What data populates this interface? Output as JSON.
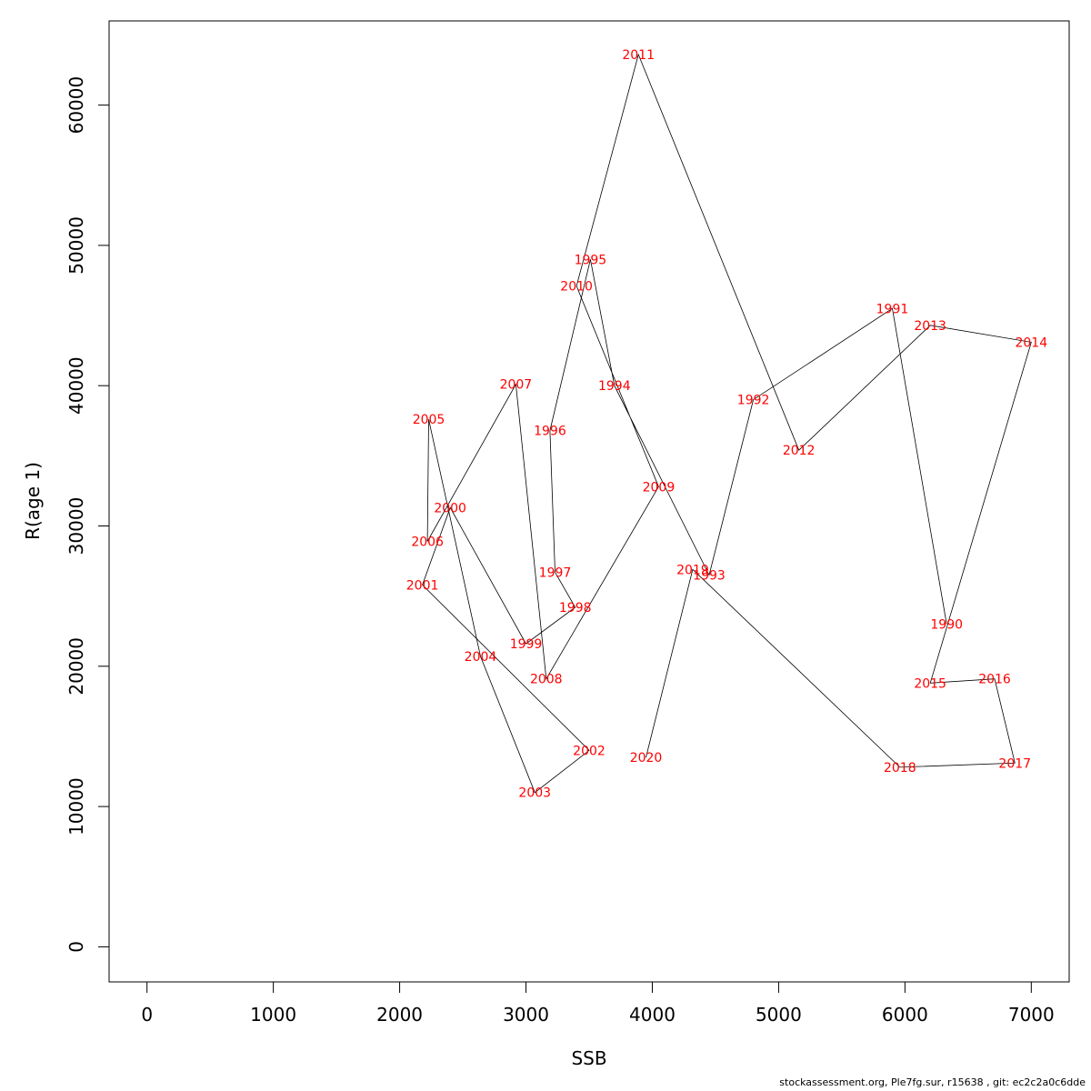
{
  "chart_data": {
    "type": "line",
    "xlabel": "SSB",
    "ylabel": "R(age 1)",
    "xlim": [
      -300,
      7300
    ],
    "ylim": [
      -2500,
      66000
    ],
    "x_ticks": [
      0,
      1000,
      2000,
      3000,
      4000,
      5000,
      6000,
      7000
    ],
    "y_ticks": [
      0,
      10000,
      20000,
      30000,
      40000,
      50000,
      60000
    ],
    "grid": false,
    "line_color": "#000000",
    "label_color": "#ff0000",
    "points": [
      {
        "label": "1990",
        "x": 6330,
        "y": 23000
      },
      {
        "label": "1991",
        "x": 5900,
        "y": 45500
      },
      {
        "label": "1992",
        "x": 4800,
        "y": 39000
      },
      {
        "label": "1993",
        "x": 4450,
        "y": 26500
      },
      {
        "label": "1994",
        "x": 3700,
        "y": 40000
      },
      {
        "label": "1995",
        "x": 3510,
        "y": 49000
      },
      {
        "label": "1996",
        "x": 3190,
        "y": 36800
      },
      {
        "label": "1997",
        "x": 3230,
        "y": 26700
      },
      {
        "label": "1998",
        "x": 3390,
        "y": 24200
      },
      {
        "label": "1999",
        "x": 3000,
        "y": 21600
      },
      {
        "label": "2000",
        "x": 2400,
        "y": 31300
      },
      {
        "label": "2001",
        "x": 2180,
        "y": 25800
      },
      {
        "label": "2002",
        "x": 3500,
        "y": 14000
      },
      {
        "label": "2003",
        "x": 3070,
        "y": 11000
      },
      {
        "label": "2004",
        "x": 2640,
        "y": 20700
      },
      {
        "label": "2005",
        "x": 2230,
        "y": 37600
      },
      {
        "label": "2006",
        "x": 2220,
        "y": 28900
      },
      {
        "label": "2007",
        "x": 2920,
        "y": 40100
      },
      {
        "label": "2008",
        "x": 3160,
        "y": 19100
      },
      {
        "label": "2009",
        "x": 4050,
        "y": 32800
      },
      {
        "label": "2010",
        "x": 3400,
        "y": 47100
      },
      {
        "label": "2011",
        "x": 3890,
        "y": 63600
      },
      {
        "label": "2012",
        "x": 5160,
        "y": 35400
      },
      {
        "label": "2013",
        "x": 6200,
        "y": 44300
      },
      {
        "label": "2014",
        "x": 7000,
        "y": 43100
      },
      {
        "label": "2015",
        "x": 6200,
        "y": 18800
      },
      {
        "label": "2016",
        "x": 6710,
        "y": 19100
      },
      {
        "label": "2017",
        "x": 6870,
        "y": 13100
      },
      {
        "label": "2018",
        "x": 5960,
        "y": 12800
      },
      {
        "label": "2019",
        "x": 4320,
        "y": 26900
      },
      {
        "label": "2020",
        "x": 3950,
        "y": 13500
      }
    ]
  },
  "footer_text": "stockassessment.org, Ple7fg.sur, r15638 , git: ec2c2a0c6dde"
}
